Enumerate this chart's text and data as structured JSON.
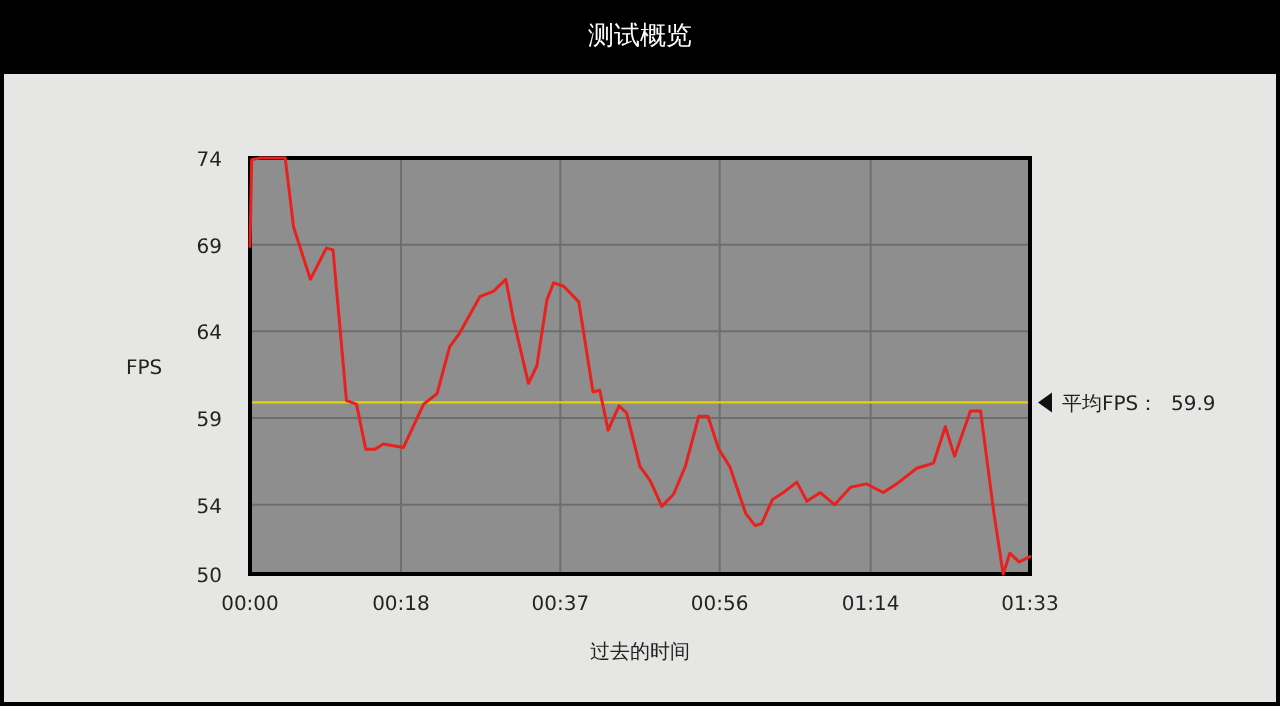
{
  "chart_data": {
    "type": "line",
    "title": "测试概览",
    "xlabel": "过去的时间",
    "ylabel": "FPS",
    "xlim": [
      0,
      93
    ],
    "ylim": [
      50,
      74
    ],
    "xticks": [
      {
        "value": 0,
        "label": "00:00"
      },
      {
        "value": 18,
        "label": "00:18"
      },
      {
        "value": 37,
        "label": "00:37"
      },
      {
        "value": 56,
        "label": "00:56"
      },
      {
        "value": 74,
        "label": "01:14"
      },
      {
        "value": 93,
        "label": "01:33"
      }
    ],
    "yticks": [
      50,
      54,
      59,
      64,
      69,
      74
    ],
    "grid": true,
    "marker": "none",
    "line_style": "solid",
    "series": [
      {
        "color": "#e8211e",
        "x": [
          0,
          0.2,
          1.2,
          4.2,
          5.2,
          7.2,
          9.1,
          9.9,
          11.5,
          12.7,
          13.8,
          14.9,
          15.9,
          18.3,
          20.7,
          22.3,
          23.8,
          25.0,
          27.4,
          29.0,
          30.5,
          31.4,
          33.2,
          34.2,
          35.4,
          36.2,
          37.4,
          39.2,
          40.9,
          41.7,
          42.7,
          44.0,
          44.9,
          46.5,
          47.7,
          49.1,
          50.5,
          51.9,
          53.5,
          54.6,
          55.9,
          57.2,
          59.1,
          60.2,
          61.0,
          62.3,
          63.6,
          65.2,
          66.4,
          68.0,
          69.7,
          71.6,
          73.5,
          75.5,
          77.1,
          79.5,
          81.5,
          82.9,
          84.0,
          85.9,
          87.1,
          88.7,
          89.8,
          90.6,
          91.7,
          93.0
        ],
        "values": [
          68.9,
          73.9,
          74,
          74,
          70.0,
          67.0,
          68.8,
          68.7,
          60.0,
          59.8,
          57.2,
          57.2,
          57.5,
          57.3,
          59.8,
          60.4,
          63.1,
          63.9,
          66.0,
          66.3,
          67.0,
          64.7,
          61.0,
          62.0,
          65.8,
          66.8,
          66.6,
          65.7,
          60.5,
          60.6,
          58.3,
          59.7,
          59.3,
          56.2,
          55.4,
          53.9,
          54.6,
          56.2,
          59.1,
          59.1,
          57.2,
          56.2,
          53.5,
          52.8,
          52.9,
          54.3,
          54.7,
          55.3,
          54.2,
          54.7,
          54.0,
          55.0,
          55.2,
          54.7,
          55.2,
          56.1,
          56.4,
          58.5,
          56.8,
          59.4,
          59.4,
          53.5,
          50.0,
          51.2,
          50.7,
          51.0
        ]
      }
    ],
    "ref_lines": [
      {
        "axis": "y",
        "value": 59.9,
        "label": "平均FPS：  59.9",
        "color": "#e6d200"
      }
    ]
  }
}
